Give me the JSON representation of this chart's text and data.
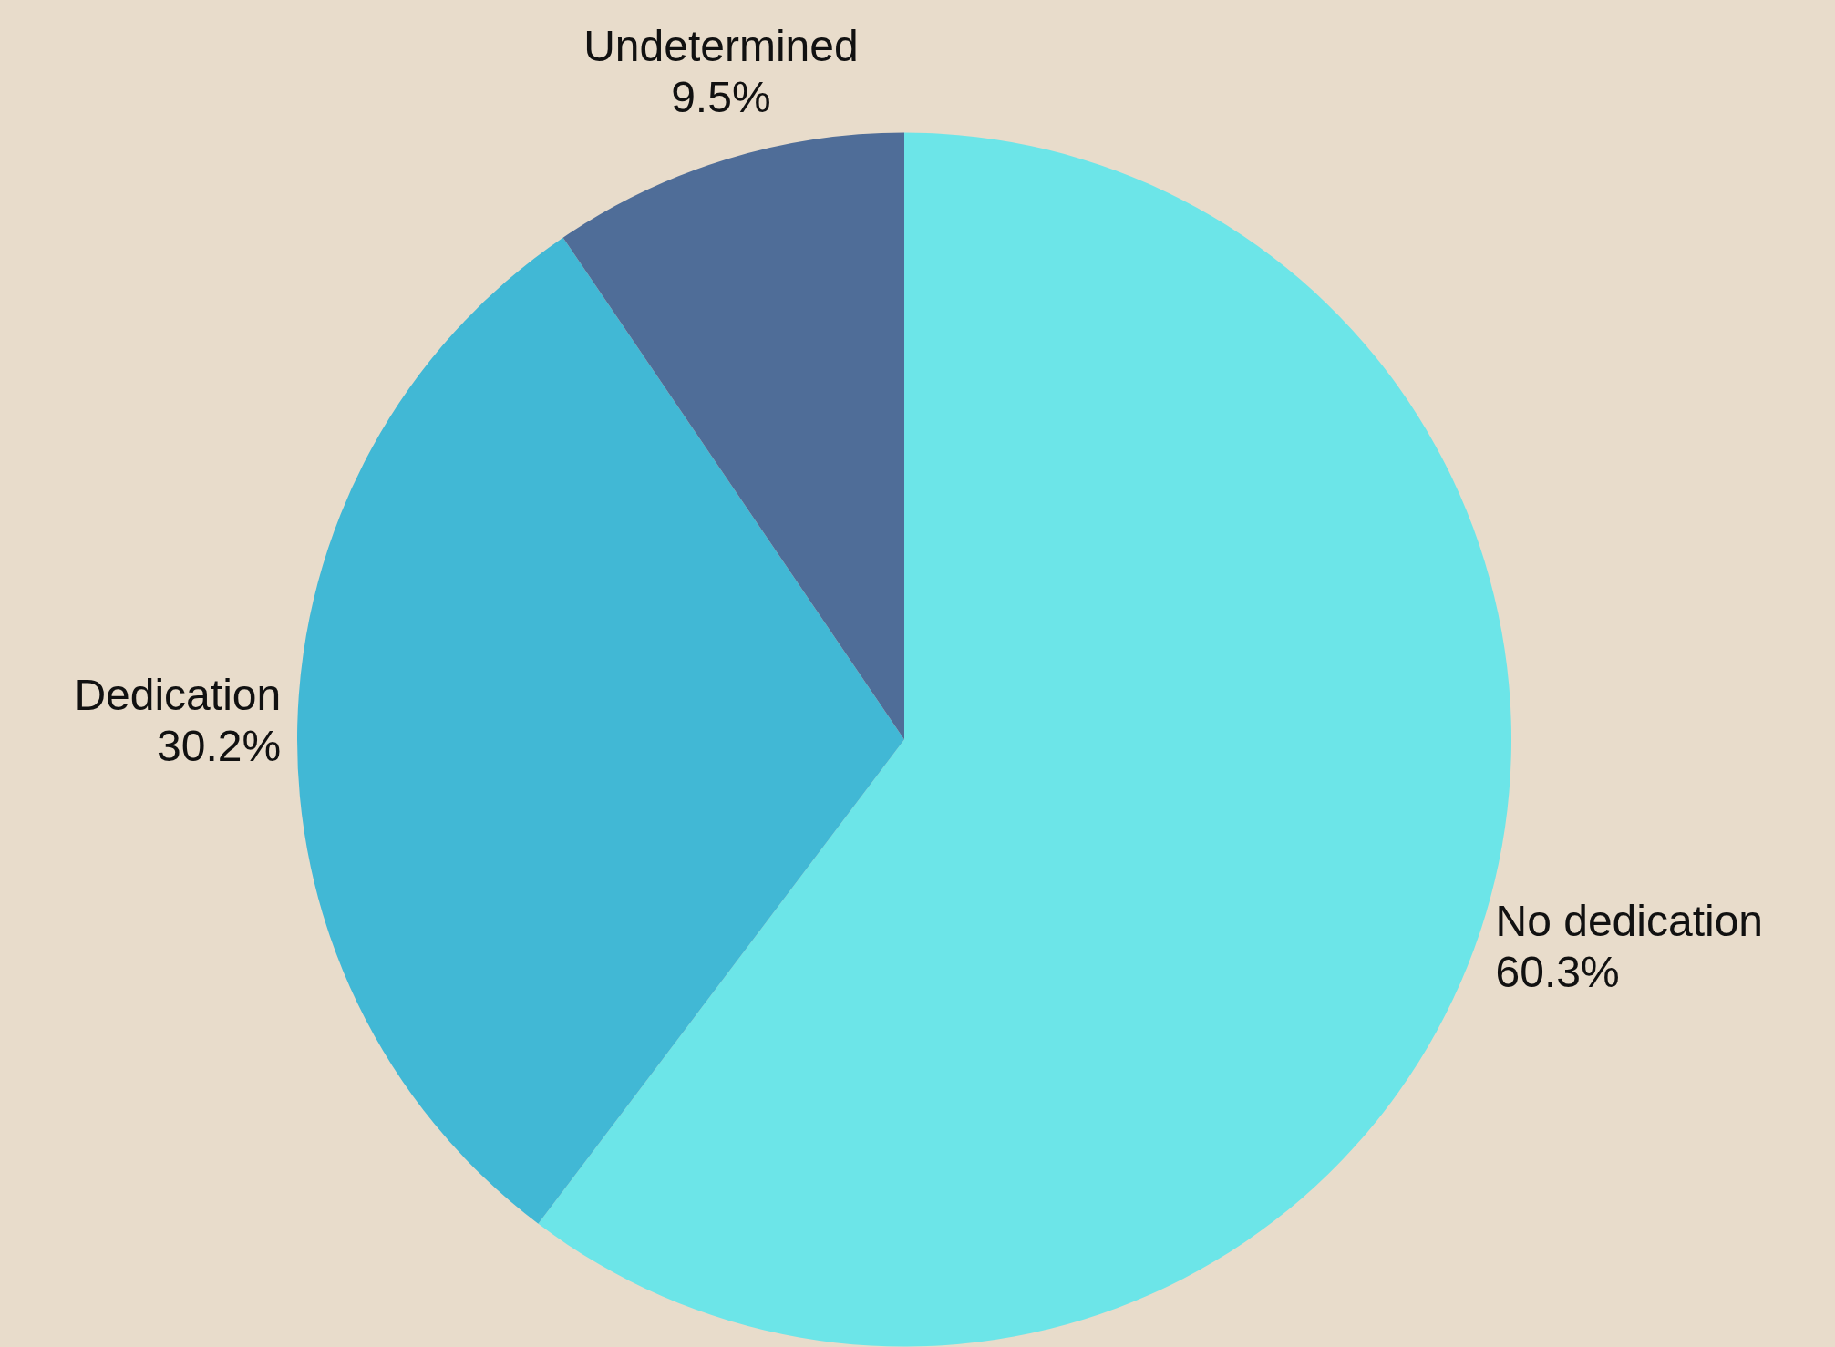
{
  "chart_data": {
    "type": "pie",
    "categories": [
      "No dedication",
      "Dedication",
      "Undetermined"
    ],
    "values": [
      60.3,
      30.2,
      9.5
    ],
    "value_labels": [
      "60.3%",
      "30.2%",
      "9.5%"
    ],
    "colors": [
      "#6ce5e8",
      "#41b8d5",
      "#4f6d98"
    ],
    "legend": false
  }
}
